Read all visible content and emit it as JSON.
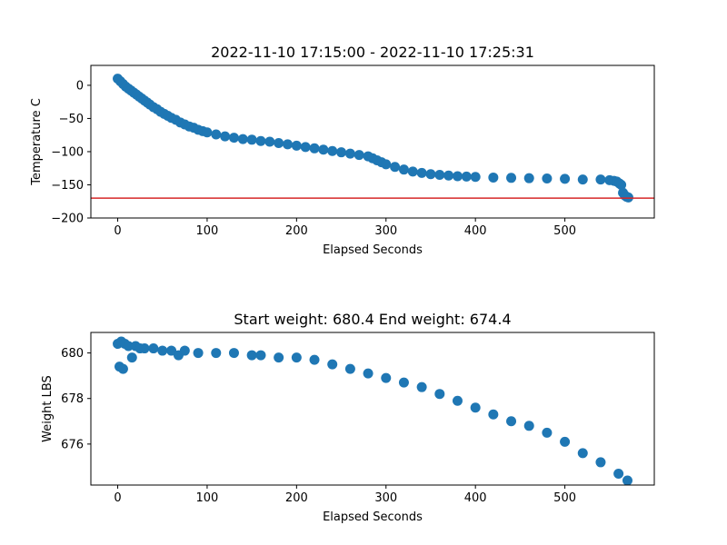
{
  "colors": {
    "marker": "#1f77b4",
    "threshold_line": "#d62728",
    "axes": "#000000"
  },
  "chart_data": [
    {
      "type": "scatter",
      "title": "2022-11-10 17:15:00 - 2022-11-10 17:25:31",
      "xlabel": "Elapsed Seconds",
      "ylabel": "Temperature C",
      "xlim": [
        -30,
        600
      ],
      "ylim": [
        -200,
        30
      ],
      "xticks": [
        0,
        100,
        200,
        300,
        400,
        500
      ],
      "yticks": [
        0,
        -50,
        -100,
        -150,
        -200
      ],
      "grid": false,
      "hline": {
        "y": -170
      },
      "points": [
        [
          0,
          10
        ],
        [
          3,
          6
        ],
        [
          6,
          2
        ],
        [
          9,
          -2
        ],
        [
          12,
          -5
        ],
        [
          15,
          -8
        ],
        [
          18,
          -11
        ],
        [
          21,
          -14
        ],
        [
          24,
          -17
        ],
        [
          27,
          -20
        ],
        [
          30,
          -23
        ],
        [
          33,
          -26
        ],
        [
          36,
          -29
        ],
        [
          40,
          -33
        ],
        [
          44,
          -36
        ],
        [
          48,
          -40
        ],
        [
          52,
          -43
        ],
        [
          56,
          -46
        ],
        [
          60,
          -49
        ],
        [
          65,
          -52
        ],
        [
          70,
          -56
        ],
        [
          75,
          -59
        ],
        [
          80,
          -62
        ],
        [
          85,
          -64
        ],
        [
          90,
          -67
        ],
        [
          95,
          -69
        ],
        [
          100,
          -71
        ],
        [
          110,
          -74
        ],
        [
          120,
          -77
        ],
        [
          130,
          -79
        ],
        [
          140,
          -81
        ],
        [
          150,
          -82
        ],
        [
          160,
          -84
        ],
        [
          170,
          -85
        ],
        [
          180,
          -87
        ],
        [
          190,
          -89
        ],
        [
          200,
          -91
        ],
        [
          210,
          -93
        ],
        [
          220,
          -95
        ],
        [
          230,
          -97
        ],
        [
          240,
          -99
        ],
        [
          250,
          -101
        ],
        [
          260,
          -103
        ],
        [
          270,
          -105
        ],
        [
          280,
          -107
        ],
        [
          285,
          -110
        ],
        [
          290,
          -113
        ],
        [
          295,
          -116
        ],
        [
          300,
          -119
        ],
        [
          310,
          -123
        ],
        [
          320,
          -127
        ],
        [
          330,
          -130
        ],
        [
          340,
          -132
        ],
        [
          350,
          -134
        ],
        [
          360,
          -135
        ],
        [
          370,
          -136
        ],
        [
          380,
          -137
        ],
        [
          390,
          -137.5
        ],
        [
          400,
          -138
        ],
        [
          420,
          -139
        ],
        [
          440,
          -139.5
        ],
        [
          460,
          -140
        ],
        [
          480,
          -140.5
        ],
        [
          500,
          -141
        ],
        [
          520,
          -142
        ],
        [
          540,
          -142
        ],
        [
          550,
          -143
        ],
        [
          555,
          -144
        ],
        [
          558,
          -145
        ],
        [
          561,
          -148
        ],
        [
          563,
          -150
        ],
        [
          565,
          -162
        ],
        [
          567,
          -166
        ],
        [
          569,
          -168
        ],
        [
          571,
          -169
        ]
      ]
    },
    {
      "type": "scatter",
      "title": "Start weight: 680.4 End weight: 674.4",
      "xlabel": "Elapsed Seconds",
      "ylabel": "Weight LBS",
      "xlim": [
        -30,
        600
      ],
      "ylim": [
        674.2,
        680.9
      ],
      "xticks": [
        0,
        100,
        200,
        300,
        400,
        500
      ],
      "yticks": [
        676,
        678,
        680
      ],
      "grid": false,
      "points": [
        [
          0,
          680.4
        ],
        [
          2,
          679.4
        ],
        [
          4,
          680.5
        ],
        [
          6,
          679.3
        ],
        [
          8,
          680.4
        ],
        [
          12,
          680.3
        ],
        [
          16,
          679.8
        ],
        [
          20,
          680.3
        ],
        [
          25,
          680.2
        ],
        [
          30,
          680.2
        ],
        [
          40,
          680.2
        ],
        [
          50,
          680.1
        ],
        [
          60,
          680.1
        ],
        [
          68,
          679.9
        ],
        [
          75,
          680.1
        ],
        [
          90,
          680.0
        ],
        [
          110,
          680.0
        ],
        [
          130,
          680.0
        ],
        [
          150,
          679.9
        ],
        [
          160,
          679.9
        ],
        [
          180,
          679.8
        ],
        [
          200,
          679.8
        ],
        [
          220,
          679.7
        ],
        [
          240,
          679.5
        ],
        [
          260,
          679.3
        ],
        [
          280,
          679.1
        ],
        [
          300,
          678.9
        ],
        [
          320,
          678.7
        ],
        [
          340,
          678.5
        ],
        [
          360,
          678.2
        ],
        [
          380,
          677.9
        ],
        [
          400,
          677.6
        ],
        [
          420,
          677.3
        ],
        [
          440,
          677.0
        ],
        [
          460,
          676.8
        ],
        [
          480,
          676.5
        ],
        [
          500,
          676.1
        ],
        [
          520,
          675.6
        ],
        [
          540,
          675.2
        ],
        [
          560,
          674.7
        ],
        [
          570,
          674.4
        ]
      ]
    }
  ]
}
